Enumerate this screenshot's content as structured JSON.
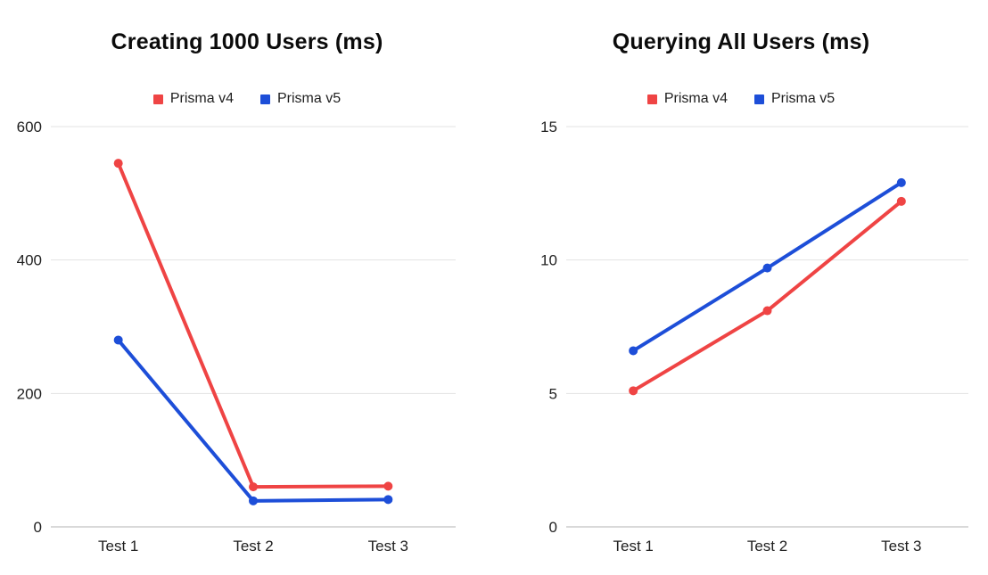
{
  "chart_data": [
    {
      "type": "line",
      "title": "Creating 1000 Users (ms)",
      "categories": [
        "Test 1",
        "Test 2",
        "Test 3"
      ],
      "series": [
        {
          "name": "Prisma v4",
          "color": "#ef4444",
          "values": [
            545,
            60,
            61
          ]
        },
        {
          "name": "Prisma v5",
          "color": "#1d4ed8",
          "values": [
            280,
            39,
            41
          ]
        }
      ],
      "ylim": [
        0,
        600
      ],
      "y_ticks": [
        0,
        200,
        400,
        600
      ],
      "xlabel": "",
      "ylabel": "",
      "grid": true,
      "legend_position": "top",
      "gridline_color": "#e3e3e3",
      "axis_line_color": "#b3b3b3",
      "label_color": "#212121"
    },
    {
      "type": "line",
      "title": "Querying All Users (ms)",
      "categories": [
        "Test 1",
        "Test 2",
        "Test 3"
      ],
      "series": [
        {
          "name": "Prisma v4",
          "color": "#ef4444",
          "values": [
            5.1,
            8.1,
            12.2
          ]
        },
        {
          "name": "Prisma v5",
          "color": "#1d4ed8",
          "values": [
            6.6,
            9.7,
            12.9
          ]
        }
      ],
      "ylim": [
        0,
        15
      ],
      "y_ticks": [
        0,
        5,
        10,
        15
      ],
      "xlabel": "",
      "ylabel": "",
      "grid": true,
      "legend_position": "top",
      "gridline_color": "#e3e3e3",
      "axis_line_color": "#b3b3b3",
      "label_color": "#212121"
    }
  ]
}
